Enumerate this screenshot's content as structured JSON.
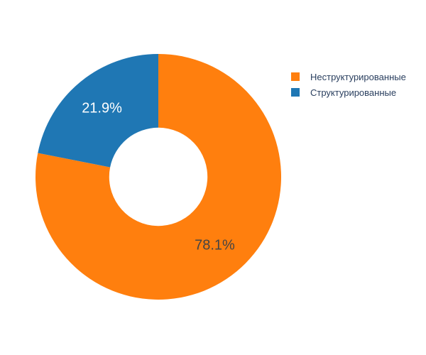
{
  "chart_data": {
    "type": "pie",
    "hole": 0.4,
    "slices": [
      {
        "label": "Неструктурированные",
        "value": 78.1,
        "text": "78.1%",
        "color": "#ff7f0e",
        "text_color": "#444444"
      },
      {
        "label": "Структурированные",
        "value": 21.9,
        "text": "21.9%",
        "color": "#1f77b4",
        "text_color": "#ffffff"
      }
    ],
    "legend": {
      "position": "top-right",
      "items": [
        {
          "label": "Неструктурированные",
          "color": "#ff7f0e"
        },
        {
          "label": "Структурированные",
          "color": "#1f77b4"
        }
      ]
    }
  }
}
